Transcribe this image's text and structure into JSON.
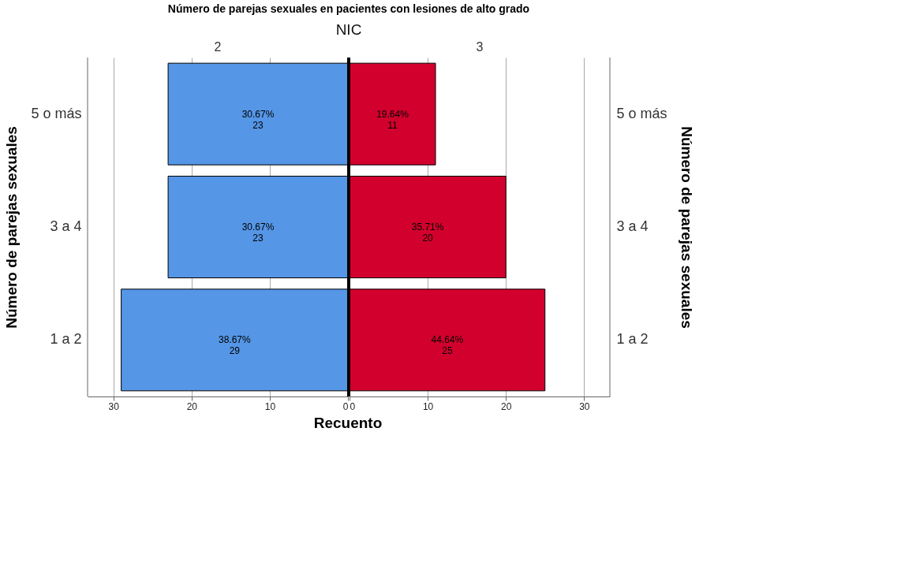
{
  "chart_data": [
    {
      "type": "bar",
      "orientation": "horizontal",
      "title": "Número de parejas sexuales en pacientes con lesiones de alto grado",
      "subtitle": "NIC",
      "annotations": [
        "2"
      ],
      "xlabel": "Recuento",
      "ylabel": "Número de parejas sexuales",
      "categories": [
        "5 o más",
        "3 a 4",
        "1 a 2"
      ],
      "series": [
        {
          "color": "#5596e6",
          "values": [
            23,
            23,
            29
          ],
          "value_labels": [
            "30.67%\n23",
            "30.67%\n23",
            "38.67%\n29"
          ]
        }
      ],
      "xlim": [
        33.3,
        0
      ],
      "xticks": [
        30,
        20,
        10,
        0
      ],
      "grid": "x"
    },
    {
      "type": "bar",
      "orientation": "horizontal",
      "annotations": [
        "3"
      ],
      "y2label": "Número de parejas sexuales",
      "categories": [
        "5 o más",
        "3 a 4",
        "1 a 2"
      ],
      "series": [
        {
          "color": "#d2002d",
          "values": [
            11,
            20,
            25
          ],
          "value_labels": [
            "19.64%\n11",
            "35.71%\n20",
            "44.64%\n25"
          ]
        }
      ],
      "xlim": [
        0,
        33.3
      ],
      "xticks": [
        0,
        10,
        20,
        30
      ],
      "grid": "x"
    }
  ]
}
